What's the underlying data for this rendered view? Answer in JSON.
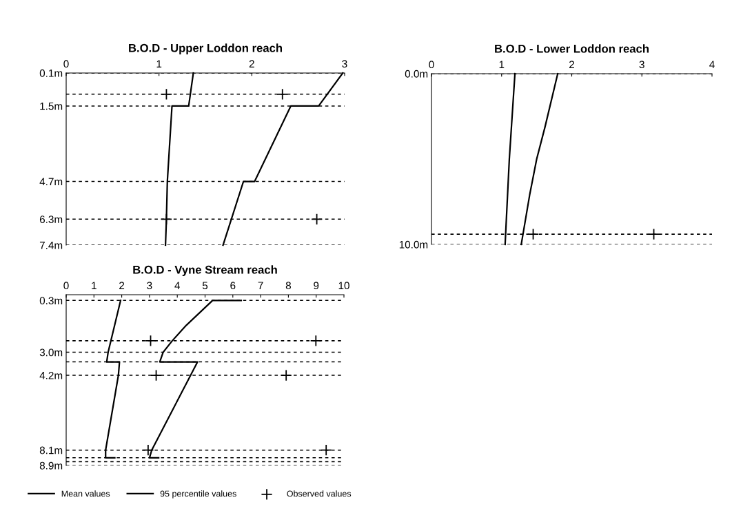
{
  "chart_data": [
    {
      "type": "line",
      "title": "B.O.D - Upper Loddon reach",
      "xlim": [
        0,
        3
      ],
      "xticks": [
        0,
        1,
        2,
        3
      ],
      "ylim": [
        7.4,
        0.1
      ],
      "yticks": [
        {
          "value": 0.1,
          "label": "0.1m"
        },
        {
          "value": 1.0,
          "label": null
        },
        {
          "value": 1.5,
          "label": "1.5m"
        },
        {
          "value": 4.7,
          "label": "4.7m"
        },
        {
          "value": 6.3,
          "label": "6.3m"
        },
        {
          "value": 7.4,
          "label": "7.4m"
        }
      ],
      "grid": "y",
      "legend": "bottom",
      "series": [
        {
          "name": "Mean values",
          "color": "#000000",
          "line_style": "solid",
          "x": [
            1.37,
            1.32,
            1.14,
            1.09,
            1.08,
            1.07
          ],
          "values": [
            0.1,
            1.5,
            1.5,
            4.7,
            6.3,
            7.4
          ]
        },
        {
          "name": "95 percentile values",
          "color": "#000000",
          "line_style": "solid",
          "x": [
            2.98,
            2.72,
            2.42,
            2.03,
            1.91,
            1.69
          ],
          "values": [
            0.1,
            1.5,
            1.5,
            4.7,
            4.7,
            7.4
          ]
        },
        {
          "name": "Observed values",
          "type": "scatter",
          "marker": "cross",
          "color": "#000000",
          "x": [
            1.08,
            2.33,
            1.08,
            2.7
          ],
          "values": [
            1.0,
            1.0,
            6.3,
            6.3
          ]
        }
      ]
    },
    {
      "type": "line",
      "title": "B.O.D - Lower Loddon reach",
      "xlim": [
        0,
        4
      ],
      "xticks": [
        0,
        1,
        2,
        3,
        4
      ],
      "ylim": [
        10.0,
        0.0
      ],
      "yticks": [
        {
          "value": 0.0,
          "label": "0.0m"
        },
        {
          "value": 9.4,
          "label": null
        },
        {
          "value": 10.0,
          "label": "10.0m"
        }
      ],
      "grid": "y",
      "series": [
        {
          "color": "#000000",
          "line_style": "solid",
          "x": [
            1.19,
            1.11,
            1.05
          ],
          "values": [
            0.0,
            5.0,
            10.0
          ]
        },
        {
          "color": "#000000",
          "line_style": "solid",
          "x": [
            1.8,
            1.62,
            1.5,
            1.4,
            1.28
          ],
          "values": [
            0.0,
            3.1,
            5.0,
            7.1,
            10.0
          ]
        },
        {
          "type": "scatter",
          "marker": "cross",
          "color": "#000000",
          "x": [
            1.45,
            3.17
          ],
          "values": [
            9.4,
            9.4
          ]
        }
      ]
    },
    {
      "type": "line",
      "title": "B.O.D - Vyne Stream reach",
      "xlim": [
        0,
        10
      ],
      "xticks": [
        0,
        1,
        2,
        3,
        4,
        5,
        6,
        7,
        8,
        9,
        10
      ],
      "ylim": [
        8.9,
        0.0
      ],
      "yticks": [
        {
          "value": 0.3,
          "label": "0.3m"
        },
        {
          "value": 2.4,
          "label": null
        },
        {
          "value": 3.0,
          "label": "3.0m"
        },
        {
          "value": 3.5,
          "label": null
        },
        {
          "value": 4.2,
          "label": "4.2m"
        },
        {
          "value": 8.1,
          "label": "8.1m"
        },
        {
          "value": 8.5,
          "label": null
        },
        {
          "value": 8.7,
          "label": null
        },
        {
          "value": 8.9,
          "label": "8.9m"
        }
      ],
      "grid": "y",
      "series": [
        {
          "color": "#000000",
          "line_style": "solid",
          "x": [
            1.96,
            1.51,
            1.46,
            1.92,
            1.88,
            1.42,
            1.42,
            1.75
          ],
          "values": [
            0.3,
            3.0,
            3.5,
            3.5,
            4.2,
            8.1,
            8.5,
            8.5
          ]
        },
        {
          "color": "#000000",
          "line_style": "solid",
          "x": [
            6.3,
            5.27,
            4.32,
            3.82,
            3.49,
            3.37,
            4.73,
            4.48,
            3.08,
            3.0,
            3.33
          ],
          "values": [
            0.3,
            0.3,
            1.6,
            2.4,
            3.0,
            3.5,
            3.5,
            4.2,
            8.1,
            8.5,
            8.5
          ]
        },
        {
          "type": "scatter",
          "marker": "cross",
          "color": "#000000",
          "x": [
            3.04,
            8.99,
            3.24,
            7.92,
            2.95,
            9.36
          ],
          "values": [
            2.4,
            2.4,
            4.2,
            4.2,
            8.1,
            8.1
          ]
        }
      ]
    }
  ]
}
